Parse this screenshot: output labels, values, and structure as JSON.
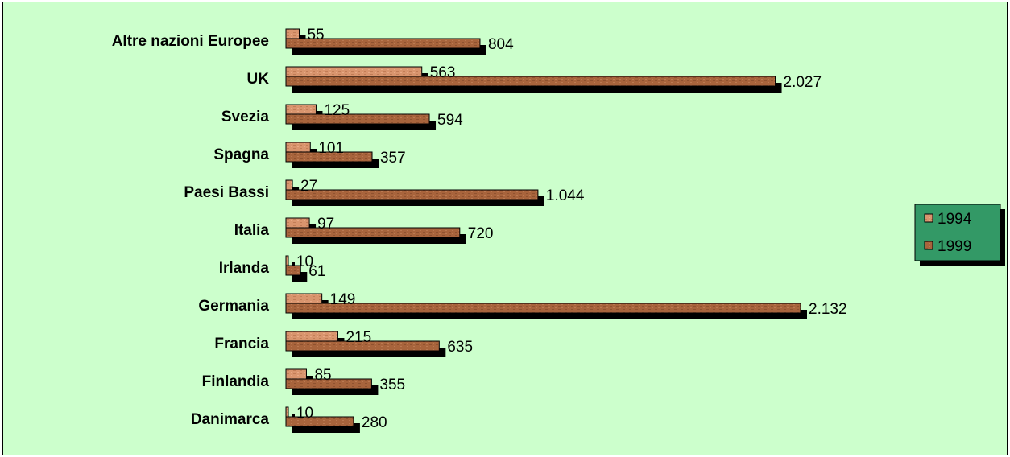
{
  "chart_data": {
    "type": "bar",
    "orientation": "horizontal",
    "title": "",
    "xlabel": "",
    "ylabel": "",
    "categories": [
      "Altre nazioni Europee",
      "UK",
      "Svezia",
      "Spagna",
      "Paesi Bassi",
      "Italia",
      "Irlanda",
      "Germania",
      "Francia",
      "Finlandia",
      "Danimarca"
    ],
    "series": [
      {
        "name": "1994",
        "values": [
          55,
          563,
          125,
          101,
          27,
          97,
          10,
          149,
          215,
          85,
          10
        ],
        "labels": [
          "55",
          "563",
          "125",
          "101",
          "27",
          "97",
          "10",
          "149",
          "215",
          "85",
          "10"
        ],
        "color": "#d9956e"
      },
      {
        "name": "1999",
        "values": [
          804,
          2027,
          594,
          357,
          1044,
          720,
          61,
          2132,
          635,
          355,
          280
        ],
        "labels": [
          "804",
          "2.027",
          "594",
          "357",
          "1.044",
          "720",
          "61",
          "2.132",
          "635",
          "355",
          "280"
        ],
        "color": "#a8643c"
      }
    ],
    "xlim": [
      0,
      2132
    ],
    "grid": false,
    "legend_position": "right",
    "colors": {
      "background": "#ccffcc",
      "legend_background": "#339966",
      "shadow": "#000000"
    }
  }
}
